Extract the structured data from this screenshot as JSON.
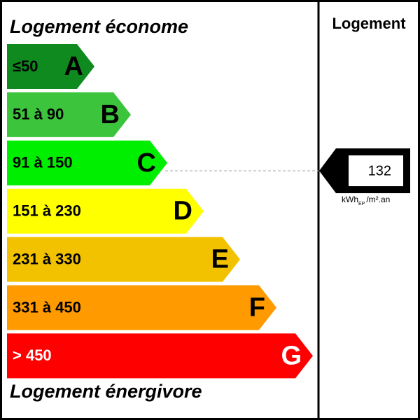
{
  "header": {
    "title": "Logement économe",
    "footer": "Logement énergivore",
    "column": "Logement"
  },
  "classes": [
    {
      "range": "≤50",
      "letter": "A",
      "color": "#0f8a1e",
      "text_color": "#000000"
    },
    {
      "range": "51 à 90",
      "letter": "B",
      "color": "#3cc43c",
      "text_color": "#000000"
    },
    {
      "range": "91 à 150",
      "letter": "C",
      "color": "#00ee00",
      "text_color": "#000000"
    },
    {
      "range": "151 à 230",
      "letter": "D",
      "color": "#ffff00",
      "text_color": "#000000"
    },
    {
      "range": "231 à 330",
      "letter": "E",
      "color": "#f2c200",
      "text_color": "#000000"
    },
    {
      "range": "331 à 450",
      "letter": "F",
      "color": "#ff9a00",
      "text_color": "#000000"
    },
    {
      "range": "> 450",
      "letter": "G",
      "color": "#ff0000",
      "text_color": "#ffffff"
    }
  ],
  "indicator": {
    "value": 132,
    "unit": "kWh",
    "unit_sub": "EP",
    "unit_suffix": "/m².an"
  }
}
